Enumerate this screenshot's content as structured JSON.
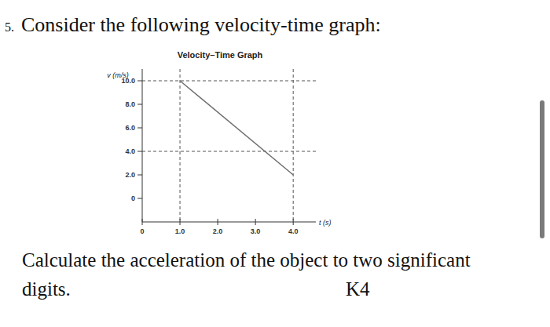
{
  "question": {
    "number": "5.",
    "prompt": "Consider the following velocity-time graph:",
    "lines": [
      "Calculate the acceleration of the object to two significant",
      "digits."
    ],
    "code": "K4"
  },
  "chart_data": {
    "type": "line",
    "title": "Velocity–Time Graph",
    "x_label": "t (s)",
    "y_label": "v (m/s)",
    "x": [
      1.0,
      4.0
    ],
    "values": [
      10.0,
      2.0
    ],
    "color": "#6e6e6e",
    "xlim": [
      0,
      4.6
    ],
    "ylim": [
      -2,
      11
    ],
    "xticks": [
      0,
      {
        "value": 1,
        "label": "1.0"
      },
      {
        "value": 2,
        "label": "2.0"
      },
      {
        "value": 3,
        "label": "3.0"
      },
      {
        "value": 4,
        "label": "4.0"
      }
    ],
    "yticks": [
      0,
      {
        "value": 2,
        "label": "2.0"
      },
      {
        "value": 4,
        "label": "4.0"
      },
      {
        "value": 6,
        "label": "6.0"
      },
      {
        "value": 8,
        "label": "8.0"
      },
      {
        "value": 10,
        "label": "10.0"
      }
    ],
    "hlines": [
      10.0,
      4.0
    ],
    "vlines": [
      1.0,
      4.0
    ],
    "grid": false
  }
}
